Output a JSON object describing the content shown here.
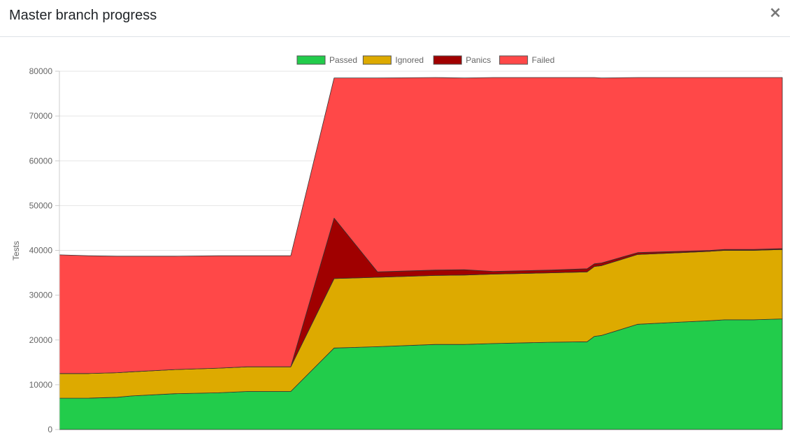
{
  "modal": {
    "title": "Master branch progress",
    "close_label": "×"
  },
  "chart_data": {
    "type": "area",
    "stacked": true,
    "title": "",
    "xlabel": "",
    "ylabel": "Tests",
    "ylim": [
      0,
      80000
    ],
    "yticks": [
      0,
      10000,
      20000,
      30000,
      40000,
      50000,
      60000,
      70000,
      80000
    ],
    "grid": true,
    "legend_position": "top",
    "x": [
      0,
      4,
      8,
      10,
      16,
      22,
      26,
      28,
      32,
      38,
      44,
      52,
      56,
      60,
      68,
      73,
      74,
      75,
      80,
      86,
      90,
      92,
      96,
      100
    ],
    "series": [
      {
        "name": "Passed",
        "color": "#22cc4b",
        "values": [
          7000,
          7000,
          7200,
          7500,
          8000,
          8200,
          8500,
          8500,
          8500,
          18200,
          18500,
          19000,
          19000,
          19200,
          19500,
          19600,
          20800,
          21000,
          23500,
          24000,
          24300,
          24500,
          24500,
          24700
        ]
      },
      {
        "name": "Ignored",
        "color": "#ddaa00",
        "values": [
          5500,
          5500,
          5500,
          5400,
          5400,
          5500,
          5500,
          5500,
          5500,
          15500,
          15500,
          15400,
          15500,
          15500,
          15500,
          15600,
          15600,
          15600,
          15600,
          15500,
          15500,
          15500,
          15500,
          15500
        ]
      },
      {
        "name": "Panics",
        "color": "#a00000",
        "values": [
          0,
          0,
          0,
          0,
          0,
          0,
          0,
          0,
          0,
          13500,
          1200,
          1200,
          1200,
          600,
          600,
          700,
          600,
          600,
          400,
          300,
          200,
          200,
          200,
          200
        ]
      },
      {
        "name": "Failed",
        "color": "#ff4848",
        "values": [
          26500,
          26300,
          26000,
          25800,
          25300,
          25100,
          24800,
          24800,
          24800,
          31300,
          43300,
          43000,
          42800,
          43300,
          43000,
          42700,
          41600,
          41300,
          39100,
          38800,
          38600,
          38400,
          38400,
          38200
        ]
      }
    ]
  }
}
